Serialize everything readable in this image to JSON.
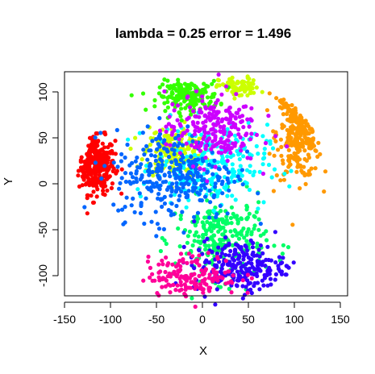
{
  "chart_data": {
    "type": "scatter",
    "title": "lambda = 0.25 error = 1.496",
    "xlabel": "X",
    "ylabel": "Y",
    "xlim": [
      -150,
      150
    ],
    "ylim": [
      -150,
      100
    ],
    "xticks": [
      -150,
      -100,
      -50,
      0,
      50,
      100,
      150
    ],
    "yticks": [
      -100,
      -50,
      0,
      50,
      100
    ],
    "grid": false,
    "legend": "none",
    "series": [
      {
        "color": "#ff0000",
        "center": [
          -115,
          20
        ],
        "spread": [
          18,
          28
        ],
        "count": 300
      },
      {
        "color": "#ff9900",
        "center": [
          105,
          55
        ],
        "spread": [
          22,
          45
        ],
        "count": 320
      },
      {
        "color": "#ccff00",
        "center": [
          -30,
          35
        ],
        "spread": [
          30,
          25
        ],
        "count": 200
      },
      {
        "color": "#ccff00",
        "center": [
          40,
          105
        ],
        "spread": [
          20,
          10
        ],
        "count": 80
      },
      {
        "color": "#33ff00",
        "center": [
          -15,
          95
        ],
        "spread": [
          30,
          15
        ],
        "count": 180
      },
      {
        "color": "#00ff66",
        "center": [
          20,
          -60
        ],
        "spread": [
          45,
          40
        ],
        "count": 260
      },
      {
        "color": "#00ffff",
        "center": [
          10,
          20
        ],
        "spread": [
          55,
          40
        ],
        "count": 240
      },
      {
        "color": "#0066ff",
        "center": [
          -30,
          10
        ],
        "spread": [
          60,
          45
        ],
        "count": 320
      },
      {
        "color": "#3300ff",
        "center": [
          40,
          -90
        ],
        "spread": [
          45,
          25
        ],
        "count": 230
      },
      {
        "color": "#cc00ff",
        "center": [
          10,
          60
        ],
        "spread": [
          45,
          35
        ],
        "count": 220
      },
      {
        "color": "#ff0099",
        "center": [
          -10,
          -100
        ],
        "spread": [
          45,
          20
        ],
        "count": 160
      }
    ]
  }
}
